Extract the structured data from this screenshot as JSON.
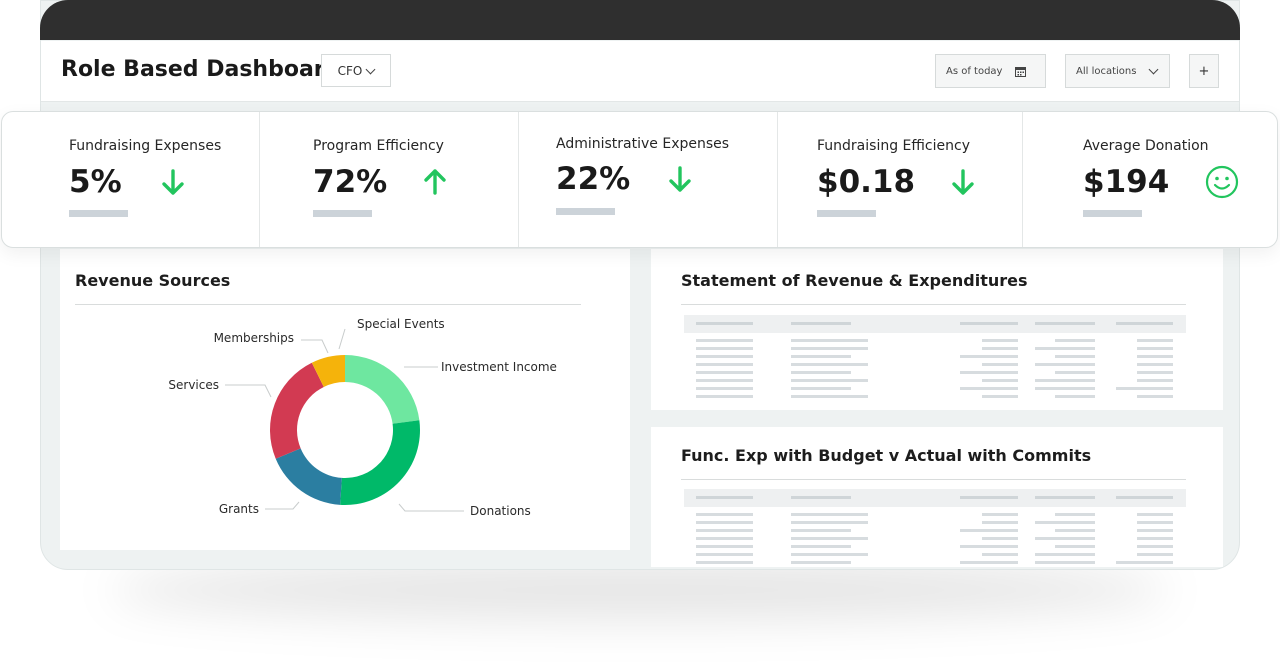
{
  "header": {
    "title": "Role Based Dashboard",
    "role": "CFO",
    "date_filter": "As of today",
    "location_filter": "All locations",
    "add_label": "+"
  },
  "kpis": [
    {
      "label": "Fundraising Expenses",
      "value": "5%",
      "trend": "down",
      "icon": "arrow-down-icon"
    },
    {
      "label": "Program Efficiency",
      "value": "72%",
      "trend": "up",
      "icon": "arrow-up-icon"
    },
    {
      "label": "Administrative Expenses",
      "value": "22%",
      "trend": "down",
      "icon": "arrow-down-icon"
    },
    {
      "label": "Fundraising Efficiency",
      "value": "$0.18",
      "trend": "down",
      "icon": "arrow-down-icon"
    },
    {
      "label": "Average Donation",
      "value": "$194",
      "trend": "happy",
      "icon": "smiley-icon"
    }
  ],
  "colors": {
    "accent_green": "#22c55e",
    "placeholder": "#d7dcdf"
  },
  "revenue_sources": {
    "title": "Revenue Sources",
    "chart_data": {
      "type": "pie",
      "categories": [
        "Investment Income",
        "Donations",
        "Grants",
        "Services",
        "Memberships",
        "Special Events"
      ],
      "values": [
        22,
        27,
        17,
        23,
        7,
        0
      ],
      "colors": [
        "#6ee7a0",
        "#00b969",
        "#2b7ea1",
        "#d23a52",
        "#f5b30b",
        "#f5b30b"
      ]
    }
  },
  "statement_panel": {
    "title": "Statement of Revenue & Expenditures"
  },
  "func_exp_panel": {
    "title": "Func. Exp with Budget v Actual with Commits"
  }
}
